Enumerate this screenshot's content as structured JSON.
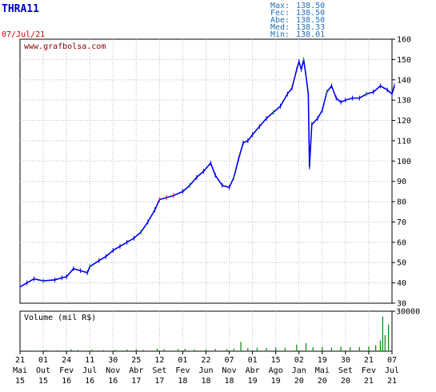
{
  "header": {
    "ticker": "THRA11",
    "date": "07/Jul/21",
    "stats": [
      {
        "label": "Max:",
        "value": "138.50"
      },
      {
        "label": "Fec:",
        "value": "138.50"
      },
      {
        "label": "Abe:",
        "value": "138.50"
      },
      {
        "label": "Med:",
        "value": "138.33"
      },
      {
        "label": "Min:",
        "value": "138.01"
      }
    ]
  },
  "watermark": "www.grafbolsa.com",
  "volume_label": "Volume (mil R$)",
  "colors": {
    "price": "#0000ee",
    "up": "#008800",
    "down": "#ee0000",
    "axis": "#000000"
  },
  "chart_data": [
    {
      "type": "line",
      "ylim": [
        30,
        160
      ],
      "yticks": [
        "30",
        "40",
        "50",
        "60",
        "70",
        "80",
        "90",
        "100",
        "110",
        "120",
        "130",
        "140",
        "150",
        "160"
      ],
      "xticks": [
        {
          "day": "21",
          "month": "Mai",
          "year": "15"
        },
        {
          "day": "01",
          "month": "Out",
          "year": "15"
        },
        {
          "day": "24",
          "month": "Fev",
          "year": "16"
        },
        {
          "day": "11",
          "month": "Jul",
          "year": "16"
        },
        {
          "day": "30",
          "month": "Nov",
          "year": "16"
        },
        {
          "day": "25",
          "month": "Abr",
          "year": "17"
        },
        {
          "day": "12",
          "month": "Set",
          "year": "17"
        },
        {
          "day": "01",
          "month": "Fev",
          "year": "18"
        },
        {
          "day": "22",
          "month": "Jun",
          "year": "18"
        },
        {
          "day": "07",
          "month": "Nov",
          "year": "18"
        },
        {
          "day": "01",
          "month": "Abr",
          "year": "19"
        },
        {
          "day": "15",
          "month": "Ago",
          "year": "19"
        },
        {
          "day": "02",
          "month": "Jan",
          "year": "20"
        },
        {
          "day": "19",
          "month": "Mai",
          "year": "20"
        },
        {
          "day": "30",
          "month": "Set",
          "year": "20"
        },
        {
          "day": "21",
          "month": "Fev",
          "year": "21"
        },
        {
          "day": "07",
          "month": "Jul",
          "year": "21"
        }
      ],
      "series": [
        {
          "values": [
            [
              0,
              38
            ],
            [
              0.3,
              40
            ],
            [
              0.6,
              42
            ],
            [
              1,
              41
            ],
            [
              1.5,
              41.5
            ],
            [
              1.8,
              42.5
            ],
            [
              2,
              43
            ],
            [
              2.3,
              47
            ],
            [
              2.6,
              46
            ],
            [
              2.9,
              45
            ],
            [
              3,
              48
            ],
            [
              3.4,
              51
            ],
            [
              3.7,
              53
            ],
            [
              4,
              56
            ],
            [
              4.3,
              58
            ],
            [
              4.6,
              60
            ],
            [
              4.9,
              62
            ],
            [
              5.2,
              65
            ],
            [
              5.5,
              70
            ],
            [
              5.8,
              76
            ],
            [
              6,
              81
            ],
            [
              6.3,
              82
            ],
            [
              6.6,
              83
            ],
            [
              7,
              85
            ],
            [
              7.3,
              88
            ],
            [
              7.6,
              92
            ],
            [
              7.9,
              95
            ],
            [
              8.2,
              99
            ],
            [
              8.4,
              93
            ],
            [
              8.7,
              88
            ],
            [
              9,
              87
            ],
            [
              9.2,
              92
            ],
            [
              9.4,
              101
            ],
            [
              9.6,
              109
            ],
            [
              9.8,
              110
            ],
            [
              10,
              113
            ],
            [
              10.3,
              117
            ],
            [
              10.6,
              121
            ],
            [
              10.9,
              124
            ],
            [
              11.2,
              127
            ],
            [
              11.5,
              133
            ],
            [
              11.7,
              136
            ],
            [
              11.9,
              145
            ],
            [
              12,
              149
            ],
            [
              12.1,
              145
            ],
            [
              12.2,
              150
            ],
            [
              12.3,
              142
            ],
            [
              12.4,
              133
            ],
            [
              12.45,
              97
            ],
            [
              12.55,
              118
            ],
            [
              12.8,
              121
            ],
            [
              13,
              125
            ],
            [
              13.2,
              134
            ],
            [
              13.4,
              137
            ],
            [
              13.6,
              131
            ],
            [
              13.8,
              129
            ],
            [
              14,
              130
            ],
            [
              14.3,
              131
            ],
            [
              14.6,
              131
            ],
            [
              14.9,
              133
            ],
            [
              15.2,
              134
            ],
            [
              15.5,
              137
            ],
            [
              15.8,
              135
            ],
            [
              16,
              133
            ],
            [
              16.1,
              137
            ]
          ]
        }
      ]
    },
    {
      "type": "bar",
      "title": "Volume (mil R$)",
      "ylim": [
        0,
        30000
      ],
      "yticks": [
        "30000"
      ],
      "values": [
        [
          0.4,
          600
        ],
        [
          1.1,
          900
        ],
        [
          1.6,
          700
        ],
        [
          2.2,
          1400
        ],
        [
          2.5,
          900
        ],
        [
          3.1,
          1100
        ],
        [
          3.6,
          900
        ],
        [
          4.1,
          1000
        ],
        [
          4.6,
          1200
        ],
        [
          5.0,
          1400
        ],
        [
          5.3,
          1000
        ],
        [
          5.9,
          2000
        ],
        [
          6.2,
          1500
        ],
        [
          6.8,
          1600
        ],
        [
          7.1,
          1800
        ],
        [
          7.5,
          1200
        ],
        [
          8.0,
          1400
        ],
        [
          8.4,
          1700
        ],
        [
          8.9,
          1500
        ],
        [
          9.2,
          2000
        ],
        [
          9.5,
          7000
        ],
        [
          9.8,
          2500
        ],
        [
          10.2,
          2600
        ],
        [
          10.6,
          2400
        ],
        [
          11.0,
          2800
        ],
        [
          11.4,
          2600
        ],
        [
          11.9,
          5000
        ],
        [
          12.3,
          6000
        ],
        [
          12.6,
          3000
        ],
        [
          13.0,
          3200
        ],
        [
          13.4,
          2800
        ],
        [
          13.8,
          3400
        ],
        [
          14.2,
          3000
        ],
        [
          14.6,
          3200
        ],
        [
          15.0,
          3600
        ],
        [
          15.3,
          4500
        ],
        [
          15.5,
          8000
        ],
        [
          15.6,
          26000
        ],
        [
          15.7,
          12000
        ],
        [
          15.85,
          20000
        ]
      ]
    }
  ]
}
